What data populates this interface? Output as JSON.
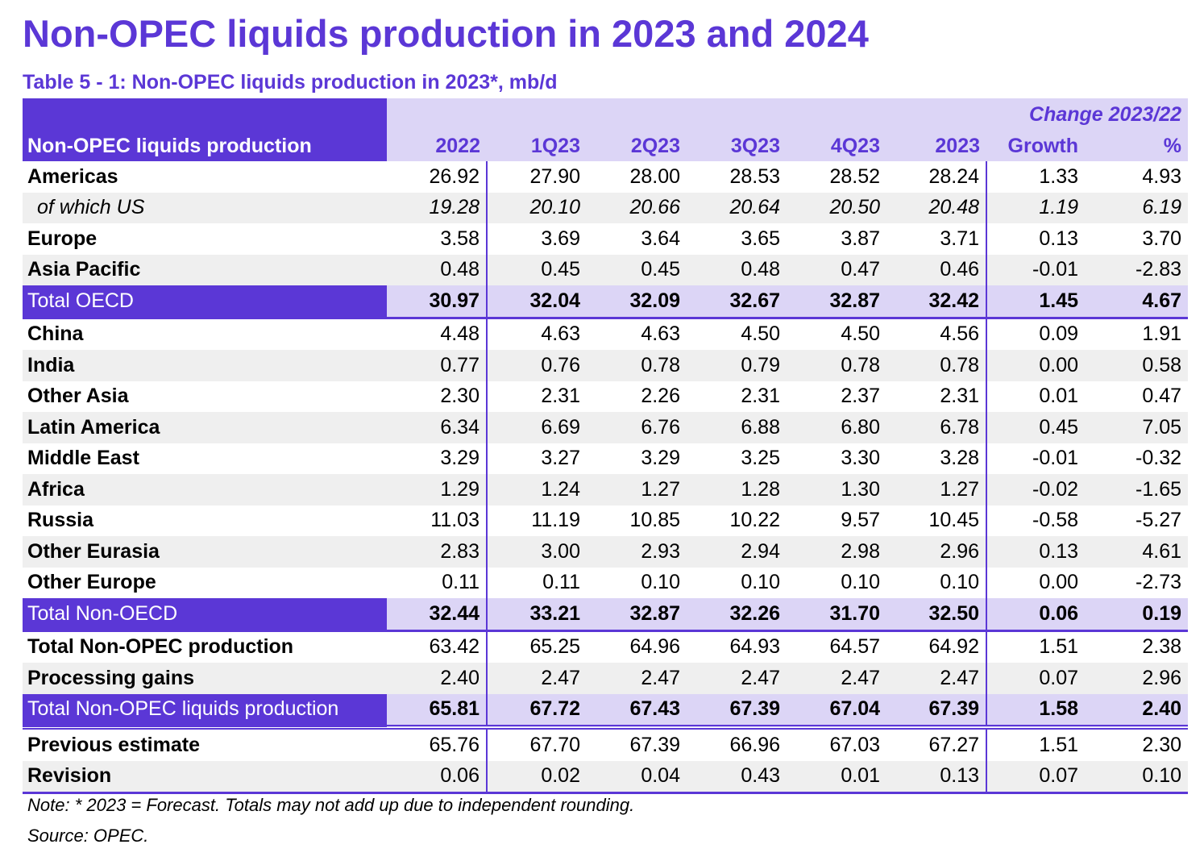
{
  "title": "Non-OPEC liquids production in 2023 and 2024",
  "subtitle": "Table 5 - 1: Non-OPEC liquids production in 2023*, mb/d",
  "header": {
    "change_label": "Change 2023/22",
    "row_label": "Non-OPEC liquids production",
    "columns": [
      "2022",
      "1Q23",
      "2Q23",
      "3Q23",
      "4Q23",
      "2023",
      "Growth",
      "%"
    ]
  },
  "rows": [
    {
      "label": "Americas",
      "values": [
        "26.92",
        "27.90",
        "28.00",
        "28.53",
        "28.52",
        "28.24",
        "1.33",
        "4.93"
      ]
    },
    {
      "label": "of which US",
      "values": [
        "19.28",
        "20.10",
        "20.66",
        "20.64",
        "20.50",
        "20.48",
        "1.19",
        "6.19"
      ]
    },
    {
      "label": "Europe",
      "values": [
        "3.58",
        "3.69",
        "3.64",
        "3.65",
        "3.87",
        "3.71",
        "0.13",
        "3.70"
      ]
    },
    {
      "label": "Asia Pacific",
      "values": [
        "0.48",
        "0.45",
        "0.45",
        "0.48",
        "0.47",
        "0.46",
        "-0.01",
        "-2.83"
      ]
    },
    {
      "label": "Total OECD",
      "values": [
        "30.97",
        "32.04",
        "32.09",
        "32.67",
        "32.87",
        "32.42",
        "1.45",
        "4.67"
      ]
    },
    {
      "label": "China",
      "values": [
        "4.48",
        "4.63",
        "4.63",
        "4.50",
        "4.50",
        "4.56",
        "0.09",
        "1.91"
      ]
    },
    {
      "label": "India",
      "values": [
        "0.77",
        "0.76",
        "0.78",
        "0.79",
        "0.78",
        "0.78",
        "0.00",
        "0.58"
      ]
    },
    {
      "label": "Other Asia",
      "values": [
        "2.30",
        "2.31",
        "2.26",
        "2.31",
        "2.37",
        "2.31",
        "0.01",
        "0.47"
      ]
    },
    {
      "label": "Latin America",
      "values": [
        "6.34",
        "6.69",
        "6.76",
        "6.88",
        "6.80",
        "6.78",
        "0.45",
        "7.05"
      ]
    },
    {
      "label": "Middle East",
      "values": [
        "3.29",
        "3.27",
        "3.29",
        "3.25",
        "3.30",
        "3.28",
        "-0.01",
        "-0.32"
      ]
    },
    {
      "label": "Africa",
      "values": [
        "1.29",
        "1.24",
        "1.27",
        "1.28",
        "1.30",
        "1.27",
        "-0.02",
        "-1.65"
      ]
    },
    {
      "label": "Russia",
      "values": [
        "11.03",
        "11.19",
        "10.85",
        "10.22",
        "9.57",
        "10.45",
        "-0.58",
        "-5.27"
      ]
    },
    {
      "label": "Other Eurasia",
      "values": [
        "2.83",
        "3.00",
        "2.93",
        "2.94",
        "2.98",
        "2.96",
        "0.13",
        "4.61"
      ]
    },
    {
      "label": "Other Europe",
      "values": [
        "0.11",
        "0.11",
        "0.10",
        "0.10",
        "0.10",
        "0.10",
        "0.00",
        "-2.73"
      ]
    },
    {
      "label": "Total Non-OECD",
      "values": [
        "32.44",
        "33.21",
        "32.87",
        "32.26",
        "31.70",
        "32.50",
        "0.06",
        "0.19"
      ]
    },
    {
      "label": "Total Non-OPEC production",
      "values": [
        "63.42",
        "65.25",
        "64.96",
        "64.93",
        "64.57",
        "64.92",
        "1.51",
        "2.38"
      ]
    },
    {
      "label": "Processing gains",
      "values": [
        "2.40",
        "2.47",
        "2.47",
        "2.47",
        "2.47",
        "2.47",
        "0.07",
        "2.96"
      ]
    },
    {
      "label": "Total Non-OPEC liquids production",
      "values": [
        "65.81",
        "67.72",
        "67.43",
        "67.39",
        "67.04",
        "67.39",
        "1.58",
        "2.40"
      ]
    },
    {
      "label": "Previous estimate",
      "values": [
        "65.76",
        "67.70",
        "67.39",
        "66.96",
        "67.03",
        "67.27",
        "1.51",
        "2.30"
      ]
    },
    {
      "label": "Revision",
      "values": [
        "0.06",
        "0.02",
        "0.04",
        "0.43",
        "0.01",
        "0.13",
        "0.07",
        "0.10"
      ]
    }
  ],
  "note": "Note: * 2023 = Forecast. Totals may not add up due to independent rounding.",
  "source": "Source: OPEC.",
  "colors": {
    "accent": "#5b37d6",
    "header_bg": "#dcd5f6",
    "alt_row": "#efefef"
  }
}
